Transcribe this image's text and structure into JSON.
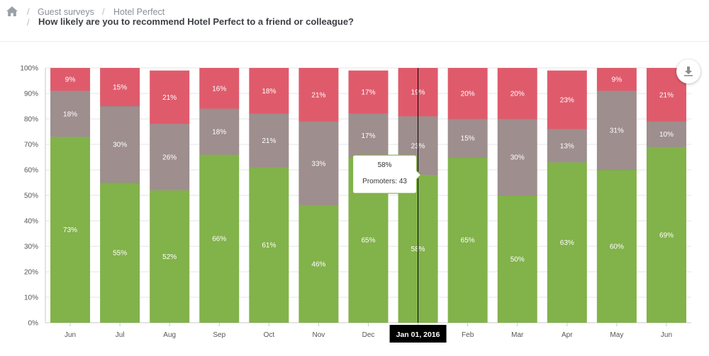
{
  "breadcrumb": {
    "items": [
      "Guest surveys",
      "Hotel Perfect"
    ],
    "question": "How likely are you to recommend Hotel Perfect to a friend or colleague?"
  },
  "icons": {
    "home": "home-icon",
    "download": "download-icon"
  },
  "colors": {
    "promoters": "#82b24a",
    "passives": "#9e8e8e",
    "detractors": "#df5b6c"
  },
  "tooltip": {
    "value": "58%",
    "text": "Promoters: 43"
  },
  "crosshair_label": "Jan 01, 2016",
  "chart_data": {
    "type": "bar",
    "stacked": true,
    "categories": [
      "Jun",
      "Jul",
      "Aug",
      "Sep",
      "Oct",
      "Nov",
      "Dec",
      "Jan",
      "Feb",
      "Mar",
      "Apr",
      "May",
      "Jun"
    ],
    "series": [
      {
        "name": "Promoters",
        "values": [
          73,
          55,
          52,
          66,
          61,
          46,
          65,
          58,
          65,
          50,
          63,
          60,
          69
        ]
      },
      {
        "name": "",
        "values": [
          18,
          30,
          26,
          18,
          21,
          33,
          17,
          23,
          15,
          30,
          13,
          31,
          10
        ]
      },
      {
        "name": "",
        "values": [
          9,
          15,
          21,
          16,
          18,
          21,
          17,
          19,
          20,
          20,
          23,
          9,
          21
        ]
      }
    ],
    "yticks": [
      "0%",
      "10%",
      "20%",
      "30%",
      "40%",
      "50%",
      "60%",
      "70%",
      "80%",
      "90%",
      "100%"
    ],
    "ylim": [
      0,
      100
    ],
    "grid": true,
    "highlight_index": 7
  }
}
